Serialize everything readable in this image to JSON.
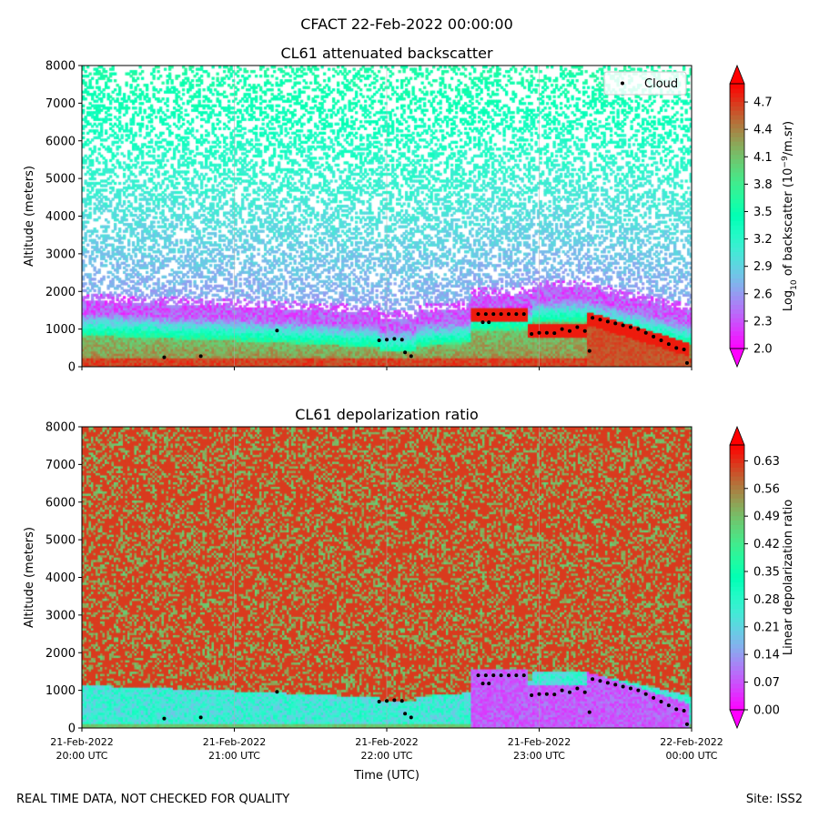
{
  "figure": {
    "suptitle": "CFACT 22-Feb-2022 00:00:00",
    "footer_left": "REAL TIME DATA, NOT CHECKED FOR QUALITY",
    "footer_right": "Site: ISS2"
  },
  "chart_data": [
    {
      "type": "heatmap",
      "title": "CL61 attenuated backscatter",
      "ylabel": "Altitude (meters)",
      "xlabel": "",
      "xlim": [
        0,
        4
      ],
      "ylim": [
        0,
        8000
      ],
      "y_ticks": [
        0,
        1000,
        2000,
        3000,
        4000,
        5000,
        6000,
        7000,
        8000
      ],
      "x_ticks": [
        0,
        1,
        2,
        3,
        4
      ],
      "x_ticklabels": [],
      "colorbar": {
        "label": "Log10 of backscatter (10^-9/m.sr)",
        "label_main": "Log",
        "label_sub": "10",
        "label_mid": " of backscatter (10",
        "label_sup": "−9",
        "label_end": "/m.sr)",
        "range": [
          2.0,
          4.9
        ],
        "ticks": [
          2.0,
          2.3,
          2.6,
          2.9,
          3.2,
          3.5,
          3.8,
          4.1,
          4.4,
          4.7
        ],
        "tick_labels": [
          "2.0",
          "2.3",
          "2.6",
          "2.9",
          "3.2",
          "3.5",
          "3.8",
          "4.1",
          "4.4",
          "4.7"
        ],
        "extend": "both"
      },
      "legend": {
        "entries": [
          "Cloud"
        ],
        "position": "upper-right"
      },
      "cloud_base_series": {
        "name": "Cloud",
        "points": [
          [
            0.54,
            250
          ],
          [
            0.78,
            280
          ],
          [
            1.28,
            960
          ],
          [
            1.95,
            700
          ],
          [
            2.0,
            720
          ],
          [
            2.05,
            740
          ],
          [
            2.1,
            720
          ],
          [
            2.12,
            380
          ],
          [
            2.16,
            280
          ],
          [
            2.6,
            1400
          ],
          [
            2.65,
            1400
          ],
          [
            2.7,
            1400
          ],
          [
            2.75,
            1400
          ],
          [
            2.8,
            1400
          ],
          [
            2.85,
            1400
          ],
          [
            2.9,
            1400
          ],
          [
            2.63,
            1180
          ],
          [
            2.67,
            1180
          ],
          [
            2.95,
            870
          ],
          [
            3.0,
            900
          ],
          [
            3.05,
            900
          ],
          [
            3.1,
            890
          ],
          [
            3.15,
            1000
          ],
          [
            3.2,
            950
          ],
          [
            3.25,
            1050
          ],
          [
            3.3,
            950
          ],
          [
            3.33,
            420
          ],
          [
            3.35,
            1300
          ],
          [
            3.4,
            1250
          ],
          [
            3.45,
            1200
          ],
          [
            3.5,
            1150
          ],
          [
            3.55,
            1100
          ],
          [
            3.6,
            1050
          ],
          [
            3.65,
            1000
          ],
          [
            3.7,
            900
          ],
          [
            3.75,
            800
          ],
          [
            3.8,
            700
          ],
          [
            3.85,
            600
          ],
          [
            3.9,
            500
          ],
          [
            3.95,
            460
          ],
          [
            3.97,
            100
          ]
        ]
      }
    },
    {
      "type": "heatmap",
      "title": "CL61 depolarization ratio",
      "ylabel": "Altitude (meters)",
      "xlabel": "Time (UTC)",
      "xlim": [
        0,
        4
      ],
      "ylim": [
        0,
        8000
      ],
      "y_ticks": [
        0,
        1000,
        2000,
        3000,
        4000,
        5000,
        6000,
        7000,
        8000
      ],
      "x_ticks": [
        0,
        1,
        2,
        3,
        4
      ],
      "x_ticklabels": [
        [
          "21-Feb-2022",
          "20:00 UTC"
        ],
        [
          "21-Feb-2022",
          "21:00 UTC"
        ],
        [
          "21-Feb-2022",
          "22:00 UTC"
        ],
        [
          "21-Feb-2022",
          "23:00 UTC"
        ],
        [
          "22-Feb-2022",
          "00:00 UTC"
        ]
      ],
      "colorbar": {
        "label": "Linear depolarization ratio",
        "range": [
          0.0,
          0.67
        ],
        "ticks": [
          0.0,
          0.07,
          0.14,
          0.21,
          0.28,
          0.35,
          0.42,
          0.49,
          0.56,
          0.63
        ],
        "tick_labels": [
          "0.00",
          "0.07",
          "0.14",
          "0.21",
          "0.28",
          "0.35",
          "0.42",
          "0.49",
          "0.56",
          "0.63"
        ],
        "extend": "both"
      },
      "cloud_base_series": {
        "name": "Cloud",
        "points": [
          [
            0.54,
            250
          ],
          [
            0.78,
            280
          ],
          [
            1.28,
            960
          ],
          [
            1.95,
            700
          ],
          [
            2.0,
            720
          ],
          [
            2.05,
            740
          ],
          [
            2.1,
            720
          ],
          [
            2.12,
            380
          ],
          [
            2.16,
            280
          ],
          [
            2.6,
            1400
          ],
          [
            2.65,
            1400
          ],
          [
            2.7,
            1400
          ],
          [
            2.75,
            1400
          ],
          [
            2.8,
            1400
          ],
          [
            2.85,
            1400
          ],
          [
            2.9,
            1400
          ],
          [
            2.63,
            1180
          ],
          [
            2.67,
            1180
          ],
          [
            2.95,
            870
          ],
          [
            3.0,
            900
          ],
          [
            3.05,
            900
          ],
          [
            3.1,
            890
          ],
          [
            3.15,
            1000
          ],
          [
            3.2,
            950
          ],
          [
            3.25,
            1050
          ],
          [
            3.3,
            950
          ],
          [
            3.33,
            420
          ],
          [
            3.35,
            1300
          ],
          [
            3.4,
            1250
          ],
          [
            3.45,
            1200
          ],
          [
            3.5,
            1150
          ],
          [
            3.55,
            1100
          ],
          [
            3.6,
            1050
          ],
          [
            3.65,
            1000
          ],
          [
            3.7,
            900
          ],
          [
            3.75,
            800
          ],
          [
            3.8,
            700
          ],
          [
            3.85,
            600
          ],
          [
            3.9,
            500
          ],
          [
            3.95,
            460
          ],
          [
            3.97,
            100
          ]
        ]
      }
    }
  ]
}
